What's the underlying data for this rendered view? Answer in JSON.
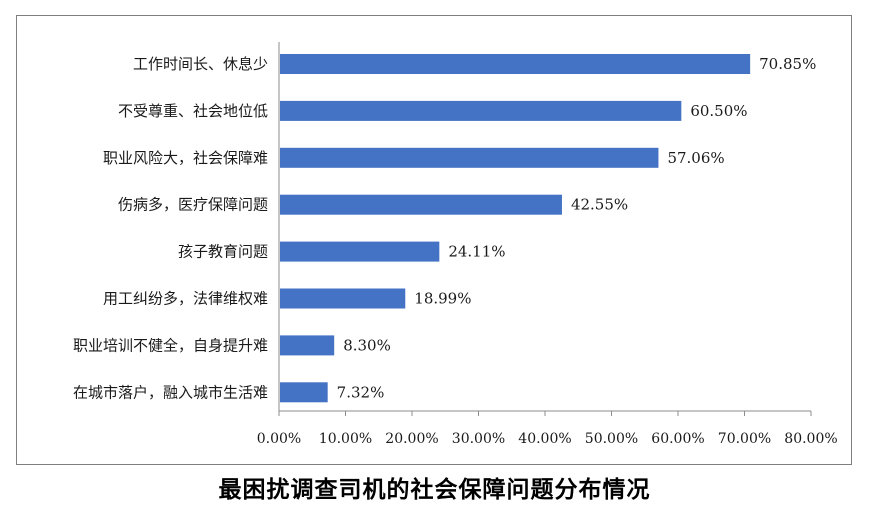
{
  "chart_data": {
    "type": "bar",
    "orientation": "horizontal",
    "title": "最困扰调查司机的社会保障问题分布情况",
    "categories": [
      "工作时间长、休息少",
      "不受尊重、社会地位低",
      "职业风险大，社会保障难",
      "伤病多，医疗保障问题",
      "孩子教育问题",
      "用工纠纷多，法律维权难",
      "职业培训不健全，自身提升难",
      "在城市落户，融入城市生活难"
    ],
    "values": [
      70.85,
      60.5,
      57.06,
      42.55,
      24.11,
      18.99,
      8.3,
      7.32
    ],
    "value_labels": [
      "70.85%",
      "60.50%",
      "57.06%",
      "42.55%",
      "24.11%",
      "18.99%",
      "8.30%",
      "7.32%"
    ],
    "xlim": [
      0,
      80
    ],
    "xticks": [
      0,
      10,
      20,
      30,
      40,
      50,
      60,
      70,
      80
    ],
    "xtick_labels": [
      "0.00%",
      "10.00%",
      "20.00%",
      "30.00%",
      "40.00%",
      "50.00%",
      "60.00%",
      "70.00%",
      "80.00%"
    ],
    "bar_color": "#4472c4",
    "grid": false,
    "legend": "none"
  }
}
